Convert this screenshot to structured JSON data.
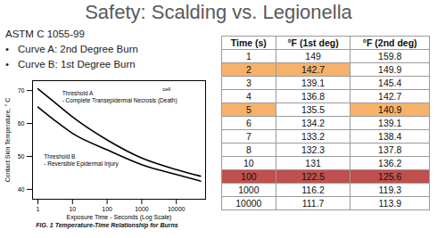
{
  "title": "Safety: Scalding vs. Legionella",
  "subtitle": "ASTM C 1055-99",
  "bullets": [
    "Curve A: 2nd Degree Burn",
    "Curve B: 1st Degree Burn"
  ],
  "chart_data": {
    "type": "line",
    "caption": "FIG. 1 Temperature-Time Relationship for Burns",
    "x_label": "Exposure Time - Seconds (Log Scale)",
    "y_label": "Contact Skin Temperature, ° C",
    "log": "x",
    "xlim": [
      0.7,
      70000
    ],
    "xticks": [
      1,
      10,
      100,
      1000,
      10000
    ],
    "ylim": [
      37,
      73
    ],
    "yticks": [
      40,
      50,
      60,
      70
    ],
    "x": [
      1,
      3,
      10,
      100,
      1000,
      10000,
      50000
    ],
    "series": [
      {
        "name": "Threshold A",
        "note": "- Complete Transepidermal Necrosis (Death)",
        "note_x": 5,
        "note_y": 69,
        "color": "#000000",
        "values": [
          70.5,
          66.5,
          62,
          55,
          49.5,
          46,
          44
        ]
      },
      {
        "name": "Threshold B",
        "note": "- Reversible Epidermal Injury",
        "note_x": 1.5,
        "note_y": 50,
        "color": "#000000",
        "values": [
          65,
          61,
          57,
          52,
          47.5,
          44.5,
          42.5
        ]
      }
    ],
    "annotations": [
      {
        "text": "cell",
        "x": 4000,
        "y": 70.5
      }
    ]
  },
  "table": {
    "header": [
      "Time (s)",
      "°F (1st deg)",
      "°F (2nd deg)"
    ],
    "rows": [
      [
        "1",
        "149",
        "159.8"
      ],
      [
        "2",
        "142.7",
        "149.9"
      ],
      [
        "3",
        "139.1",
        "145.4"
      ],
      [
        "4",
        "136.8",
        "142.7"
      ],
      [
        "5",
        "135.5",
        "140.9"
      ],
      [
        "6",
        "134.2",
        "139.1"
      ],
      [
        "7",
        "133.2",
        "138.4"
      ],
      [
        "8",
        "132.3",
        "137.8"
      ],
      [
        "10",
        "131",
        "136.2"
      ],
      [
        "100",
        "122.5",
        "125.6"
      ],
      [
        "1000",
        "116.2",
        "119.3"
      ],
      [
        "10000",
        "111.7",
        "113.9"
      ]
    ],
    "cell_colors": [
      [
        null,
        null,
        null
      ],
      [
        "#f6b26b",
        "#f6b26b",
        null
      ],
      [
        null,
        null,
        null
      ],
      [
        null,
        null,
        null
      ],
      [
        "#f6b26b",
        null,
        "#f6b26b"
      ],
      [
        null,
        null,
        null
      ],
      [
        null,
        null,
        null
      ],
      [
        null,
        null,
        null
      ],
      [
        null,
        null,
        null
      ],
      [
        "#c0504d",
        "#c0504d",
        "#c0504d"
      ],
      [
        null,
        null,
        null
      ],
      [
        null,
        null,
        null
      ]
    ]
  }
}
